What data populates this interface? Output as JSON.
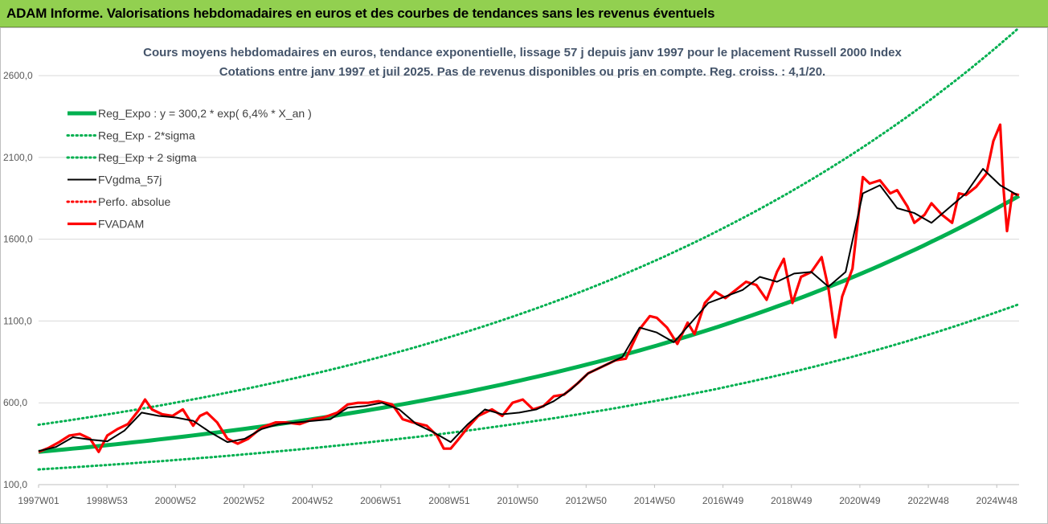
{
  "header": {
    "title": "ADAM Informe. Valorisations hebdomadaires en euros et des courbes de tendances sans les revenus éventuels"
  },
  "colors": {
    "header_bg": "#92d050",
    "trend_green": "#00b050",
    "smoothed_black": "#000000",
    "adam_red": "#ff0000"
  },
  "chart_data": {
    "type": "line",
    "title": "Cours moyens hebdomadaires en euros, tendance exponentielle, lissage 57 j depuis janv 1997 pour le placement Russell 2000 Index",
    "subtitle": "Cotations entre janv 1997 et juil 2025. Pas de revenus disponibles ou pris en compte. Reg. croiss. : 4,1/20.",
    "xlabel": "",
    "ylabel": "",
    "xlim": [
      1997.0,
      2025.55
    ],
    "ylim": [
      100,
      2900
    ],
    "grid": "horizontal",
    "legend_position": "top-left",
    "x_tick_labels": [
      "1997W01",
      "1998W53",
      "2000W52",
      "2002W52",
      "2004W52",
      "2006W51",
      "2008W51",
      "2010W50",
      "2012W50",
      "2014W50",
      "2016W49",
      "2018W49",
      "2020W49",
      "2022W48",
      "2024W48"
    ],
    "y_tick_labels": [
      "100,0",
      "600,0",
      "1100,0",
      "1600,0",
      "2100,0",
      "2600,0"
    ],
    "series": [
      {
        "name": "Reg_Expo : y = 300,2 * exp( 6,4% *  X_an )",
        "style": "solid-thick",
        "color": "#00b050",
        "x": [
          1997.0,
          2000.0,
          2003.0,
          2006.0,
          2009.0,
          2012.0,
          2015.0,
          2018.0,
          2021.0,
          2024.0,
          2025.55
        ],
        "values": [
          300,
          364,
          441,
          534,
          647,
          784,
          950,
          1151,
          1394,
          1689,
          1865
        ]
      },
      {
        "name": "Reg_Exp - 2*sigma",
        "style": "dotted",
        "color": "#00b050",
        "x": [
          1997.0,
          2000.0,
          2003.0,
          2006.0,
          2009.0,
          2012.0,
          2015.0,
          2018.0,
          2021.0,
          2024.0,
          2025.55
        ],
        "values": [
          193,
          235,
          285,
          345,
          417,
          506,
          613,
          742,
          899,
          1090,
          1203
        ]
      },
      {
        "name": "Reg_Exp + 2 sigma",
        "style": "dotted",
        "color": "#00b050",
        "x": [
          1997.0,
          2000.0,
          2003.0,
          2006.0,
          2009.0,
          2012.0,
          2015.0,
          2018.0,
          2021.0,
          2024.0,
          2025.55
        ],
        "values": [
          466,
          564,
          684,
          828,
          1004,
          1216,
          1473,
          1785,
          2162,
          2620,
          2893
        ]
      },
      {
        "name": "FVgdma_57j",
        "style": "solid",
        "color": "#000000",
        "x": [
          1997.0,
          1997.5,
          1998.0,
          1998.5,
          1999.0,
          1999.5,
          2000.0,
          2000.5,
          2001.0,
          2001.5,
          2002.0,
          2002.5,
          2003.0,
          2003.5,
          2004.0,
          2004.5,
          2005.0,
          2005.5,
          2006.0,
          2006.5,
          2007.0,
          2007.5,
          2008.0,
          2008.5,
          2009.0,
          2009.5,
          2010.0,
          2010.5,
          2011.0,
          2011.5,
          2012.0,
          2012.5,
          2013.0,
          2013.5,
          2014.0,
          2014.5,
          2015.0,
          2015.5,
          2016.0,
          2016.5,
          2017.0,
          2017.5,
          2018.0,
          2018.5,
          2019.0,
          2019.5,
          2020.0,
          2020.5,
          2021.0,
          2021.5,
          2022.0,
          2022.5,
          2023.0,
          2023.5,
          2024.0,
          2024.5,
          2025.0,
          2025.5
        ],
        "values": [
          305,
          330,
          390,
          375,
          365,
          430,
          540,
          520,
          510,
          490,
          420,
          360,
          380,
          440,
          470,
          480,
          490,
          500,
          570,
          580,
          600,
          560,
          470,
          420,
          360,
          470,
          560,
          530,
          540,
          560,
          610,
          680,
          780,
          830,
          880,
          1060,
          1030,
          970,
          1090,
          1210,
          1250,
          1290,
          1370,
          1340,
          1390,
          1400,
          1310,
          1400,
          1880,
          1930,
          1790,
          1760,
          1700,
          1790,
          1880,
          2030,
          1930,
          1870
        ]
      },
      {
        "name": "Perfo. absolue",
        "style": "dotted",
        "color": "#ff0000",
        "x": [],
        "values": []
      },
      {
        "name": "FVADAM",
        "style": "solid-thick",
        "color": "#ff0000",
        "x": [
          1997.0,
          1997.3,
          1997.6,
          1997.9,
          1998.2,
          1998.5,
          1998.75,
          1999.0,
          1999.3,
          1999.6,
          1999.9,
          2000.1,
          2000.3,
          2000.6,
          2000.9,
          2001.2,
          2001.5,
          2001.7,
          2001.9,
          2002.2,
          2002.5,
          2002.8,
          2003.1,
          2003.5,
          2003.9,
          2004.2,
          2004.6,
          2005.0,
          2005.3,
          2005.7,
          2006.0,
          2006.3,
          2006.6,
          2006.9,
          2007.3,
          2007.6,
          2007.9,
          2008.3,
          2008.6,
          2008.8,
          2009.0,
          2009.2,
          2009.5,
          2009.8,
          2010.2,
          2010.5,
          2010.8,
          2011.1,
          2011.4,
          2011.7,
          2012.0,
          2012.3,
          2012.7,
          2013.0,
          2013.4,
          2013.8,
          2014.1,
          2014.5,
          2014.8,
          2015.0,
          2015.3,
          2015.6,
          2015.9,
          2016.1,
          2016.4,
          2016.7,
          2017.0,
          2017.3,
          2017.6,
          2017.9,
          2018.2,
          2018.5,
          2018.7,
          2018.95,
          2019.2,
          2019.5,
          2019.8,
          2020.0,
          2020.2,
          2020.4,
          2020.7,
          2021.0,
          2021.2,
          2021.5,
          2021.8,
          2022.0,
          2022.3,
          2022.5,
          2022.8,
          2023.0,
          2023.3,
          2023.6,
          2023.8,
          2024.0,
          2024.3,
          2024.6,
          2024.8,
          2025.0,
          2025.1,
          2025.2,
          2025.35,
          2025.55
        ],
        "values": [
          300,
          325,
          360,
          400,
          410,
          380,
          300,
          400,
          440,
          470,
          550,
          620,
          560,
          530,
          520,
          560,
          460,
          520,
          540,
          480,
          380,
          350,
          380,
          450,
          480,
          480,
          470,
          500,
          510,
          540,
          590,
          600,
          600,
          610,
          590,
          500,
          480,
          460,
          400,
          320,
          320,
          370,
          450,
          520,
          560,
          520,
          600,
          620,
          560,
          580,
          640,
          650,
          720,
          780,
          820,
          860,
          870,
          1050,
          1130,
          1120,
          1060,
          960,
          1090,
          1020,
          1210,
          1280,
          1240,
          1290,
          1340,
          1320,
          1230,
          1400,
          1480,
          1210,
          1370,
          1400,
          1490,
          1300,
          1000,
          1250,
          1420,
          1980,
          1940,
          1960,
          1880,
          1900,
          1800,
          1700,
          1750,
          1820,
          1750,
          1700,
          1880,
          1870,
          1920,
          2000,
          2200,
          2300,
          1900,
          1650,
          1880,
          1870
        ]
      }
    ]
  }
}
